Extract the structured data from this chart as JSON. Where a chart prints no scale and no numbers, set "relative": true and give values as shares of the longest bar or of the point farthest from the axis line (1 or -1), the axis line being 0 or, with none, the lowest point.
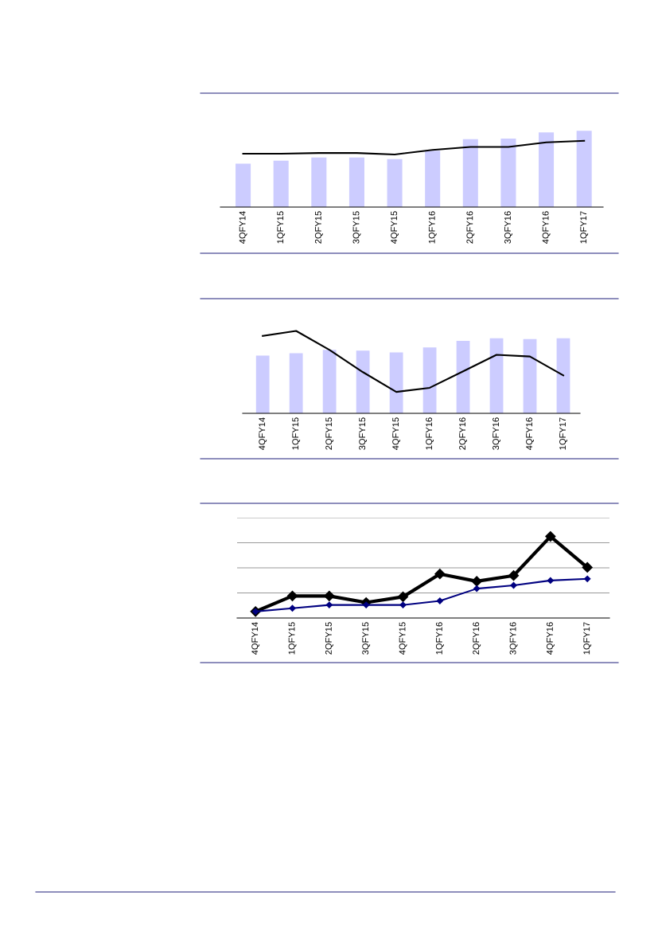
{
  "chart_data": [
    {
      "type": "bar",
      "relative": true,
      "categories": [
        "4QFY14",
        "1QFY15",
        "2QFY15",
        "3QFY15",
        "4QFY15",
        "1QFY16",
        "2QFY16",
        "3QFY16",
        "4QFY16",
        "1QFY17"
      ],
      "series": [
        {
          "type": "bar",
          "color": "#ccccff",
          "values": [
            0.57,
            0.61,
            0.65,
            0.65,
            0.63,
            0.74,
            0.89,
            0.9,
            0.98,
            1
          ]
        },
        {
          "type": "line",
          "color": "#000000",
          "values": [
            0.7,
            0.7,
            0.71,
            0.71,
            0.69,
            0.75,
            0.79,
            0.79,
            0.85,
            0.87
          ]
        }
      ],
      "grid": false,
      "marker": "none",
      "line_style": "solid"
    },
    {
      "type": "bar",
      "relative": true,
      "categories": [
        "4QFY14",
        "1QFY15",
        "2QFY15",
        "3QFY15",
        "4QFY15",
        "1QFY16",
        "2QFY16",
        "3QFY16",
        "4QFY16",
        "1QFY17"
      ],
      "series": [
        {
          "type": "bar",
          "color": "#ccccff",
          "values": [
            0.7,
            0.73,
            0.77,
            0.76,
            0.74,
            0.8,
            0.88,
            0.91,
            0.9,
            0.91
          ]
        },
        {
          "type": "line",
          "color": "#000000",
          "values": [
            0.94,
            1,
            0.77,
            0.5,
            0.26,
            0.31,
            0.51,
            0.71,
            0.69,
            0.46
          ]
        }
      ],
      "grid": false,
      "marker": "none",
      "line_style": "solid"
    },
    {
      "type": "line",
      "relative": true,
      "categories": [
        "4QFY14",
        "1QFY15",
        "2QFY15",
        "3QFY15",
        "4QFY15",
        "1QFY16",
        "2QFY16",
        "3QFY16",
        "4QFY16",
        "1QFY17"
      ],
      "series": [
        {
          "color": "#000000",
          "values": [
            0.08,
            0.27,
            0.27,
            0.19,
            0.26,
            0.54,
            0.45,
            0.52,
            1,
            0.62
          ]
        },
        {
          "color": "#000080",
          "values": [
            0.08,
            0.12,
            0.16,
            0.16,
            0.16,
            0.21,
            0.36,
            0.4,
            0.46,
            0.48
          ]
        }
      ],
      "grid": "y",
      "marker": "diamond",
      "line_style": "solid"
    }
  ]
}
